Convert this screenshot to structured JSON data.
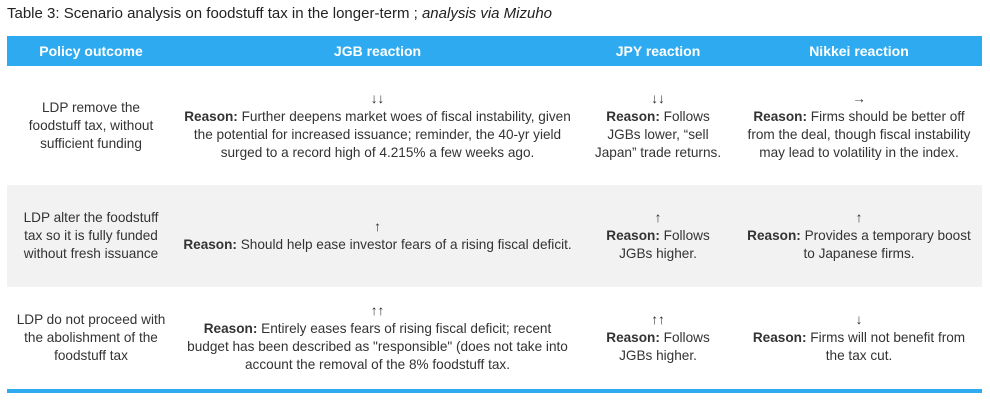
{
  "title": {
    "main": "Table 3: Scenario analysis on foodstuff tax in the longer-term",
    "separator": " ; ",
    "source": "analysis via Mizuho"
  },
  "colors": {
    "header": "#2eabf0",
    "alt_row": "#f2f2f2"
  },
  "headers": [
    "Policy outcome",
    "JGB reaction",
    "JPY reaction",
    "Nikkei reaction"
  ],
  "reason_label": "Reason:",
  "rows": [
    {
      "policy": "LDP remove the foodstuff tax, without sufficient funding",
      "jgb": {
        "arrow": "↓↓",
        "text": " Further deepens market woes of fiscal instability, given the potential for increased issuance; reminder, the 40-yr yield surged to a record high of 4.215% a few weeks ago."
      },
      "jpy": {
        "arrow": "↓↓",
        "text": " Follows JGBs lower, “sell Japan” trade returns."
      },
      "nikkei": {
        "arrow": "→",
        "text": " Firms should be better off from the deal, though fiscal instability may lead to volatility in the index."
      }
    },
    {
      "policy": "LDP alter the foodstuff tax so it is fully funded without fresh issuance",
      "jgb": {
        "arrow": "↑",
        "text": " Should help ease investor fears of a rising fiscal deficit."
      },
      "jpy": {
        "arrow": "↑",
        "text": " Follows JGBs higher."
      },
      "nikkei": {
        "arrow": "↑",
        "text": " Provides a temporary boost to Japanese firms."
      }
    },
    {
      "policy": "LDP do not proceed with the abolishment of the foodstuff tax",
      "jgb": {
        "arrow": "↑↑",
        "text": " Entirely eases fears of rising fiscal deficit; recent budget has been described as \"responsible\" (does not take into account the removal of the 8% foodstuff tax."
      },
      "jpy": {
        "arrow": "↑↑",
        "text": " Follows JGBs higher."
      },
      "nikkei": {
        "arrow": "↓",
        "text": " Firms will not benefit from the tax cut."
      }
    }
  ]
}
